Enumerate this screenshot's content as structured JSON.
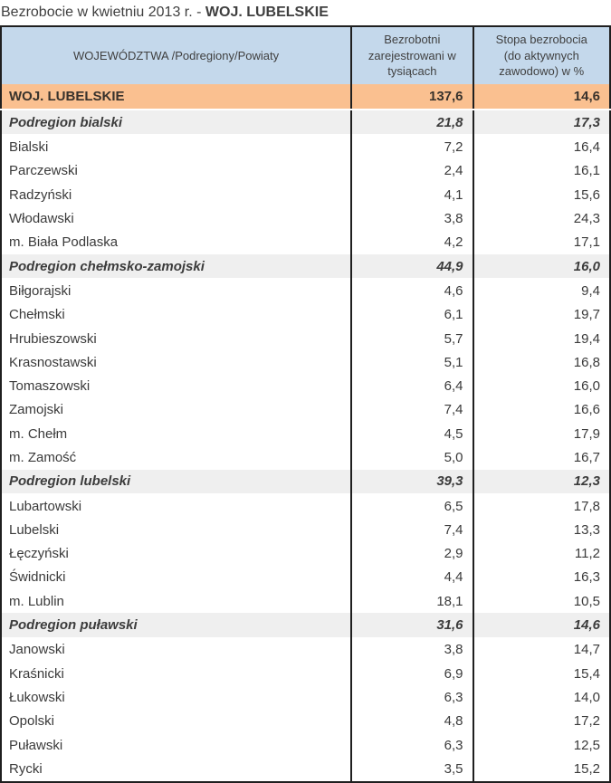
{
  "title": {
    "prefix": "Bezrobocie w kwietniu 2013 r. - ",
    "highlight": "WOJ. LUBELSKIE"
  },
  "colors": {
    "header_bg": "#C4D8EB",
    "voivodeship_row_bg": "#FAC090",
    "subregion_row_bg": "#EFEFEF",
    "table_border": "#1F1F1F",
    "text": "#3A3A3A"
  },
  "chart_data": {
    "type": "table",
    "title": "Bezrobocie w kwietniu 2013 r. - WOJ. LUBELSKIE",
    "columns": [
      "WOJEWÓDZTWA /Podregiony/Powiaty",
      "Bezrobotni\nzarejestrowani w\ntysiącach",
      "Stopa bezrobocia\n(do aktywnych\nzawodowo) w %"
    ],
    "rows": [
      {
        "name": "WOJ. LUBELSKIE",
        "unemployed": "137,6",
        "rate": "14,6",
        "level": "voivodeship"
      },
      {
        "name": "Podregion bialski",
        "unemployed": "21,8",
        "rate": "17,3",
        "level": "subregion"
      },
      {
        "name": "Bialski",
        "unemployed": "7,2",
        "rate": "16,4",
        "level": "county"
      },
      {
        "name": "Parczewski",
        "unemployed": "2,4",
        "rate": "16,1",
        "level": "county"
      },
      {
        "name": "Radzyński",
        "unemployed": "4,1",
        "rate": "15,6",
        "level": "county"
      },
      {
        "name": "Włodawski",
        "unemployed": "3,8",
        "rate": "24,3",
        "level": "county"
      },
      {
        "name": "m. Biała Podlaska",
        "unemployed": "4,2",
        "rate": "17,1",
        "level": "county"
      },
      {
        "name": "Podregion chełmsko-zamojski",
        "unemployed": "44,9",
        "rate": "16,0",
        "level": "subregion"
      },
      {
        "name": "Biłgorajski",
        "unemployed": "4,6",
        "rate": "9,4",
        "level": "county"
      },
      {
        "name": "Chełmski",
        "unemployed": "6,1",
        "rate": "19,7",
        "level": "county"
      },
      {
        "name": "Hrubieszowski",
        "unemployed": "5,7",
        "rate": "19,4",
        "level": "county"
      },
      {
        "name": "Krasnostawski",
        "unemployed": "5,1",
        "rate": "16,8",
        "level": "county"
      },
      {
        "name": "Tomaszowski",
        "unemployed": "6,4",
        "rate": "16,0",
        "level": "county"
      },
      {
        "name": "Zamojski",
        "unemployed": "7,4",
        "rate": "16,6",
        "level": "county"
      },
      {
        "name": "m. Chełm",
        "unemployed": "4,5",
        "rate": "17,9",
        "level": "county"
      },
      {
        "name": "m. Zamość",
        "unemployed": "5,0",
        "rate": "16,7",
        "level": "county"
      },
      {
        "name": "Podregion lubelski",
        "unemployed": "39,3",
        "rate": "12,3",
        "level": "subregion"
      },
      {
        "name": "Lubartowski",
        "unemployed": "6,5",
        "rate": "17,8",
        "level": "county"
      },
      {
        "name": "Lubelski",
        "unemployed": "7,4",
        "rate": "13,3",
        "level": "county"
      },
      {
        "name": "Łęczyński",
        "unemployed": "2,9",
        "rate": "11,2",
        "level": "county"
      },
      {
        "name": "Świdnicki",
        "unemployed": "4,4",
        "rate": "16,3",
        "level": "county"
      },
      {
        "name": "m. Lublin",
        "unemployed": "18,1",
        "rate": "10,5",
        "level": "county"
      },
      {
        "name": "Podregion puławski",
        "unemployed": "31,6",
        "rate": "14,6",
        "level": "subregion"
      },
      {
        "name": "Janowski",
        "unemployed": "3,8",
        "rate": "14,7",
        "level": "county"
      },
      {
        "name": "Kraśnicki",
        "unemployed": "6,9",
        "rate": "15,4",
        "level": "county"
      },
      {
        "name": "Łukowski",
        "unemployed": "6,3",
        "rate": "14,0",
        "level": "county"
      },
      {
        "name": "Opolski",
        "unemployed": "4,8",
        "rate": "17,2",
        "level": "county"
      },
      {
        "name": "Puławski",
        "unemployed": "6,3",
        "rate": "12,5",
        "level": "county"
      },
      {
        "name": "Rycki",
        "unemployed": "3,5",
        "rate": "15,2",
        "level": "county"
      }
    ]
  }
}
